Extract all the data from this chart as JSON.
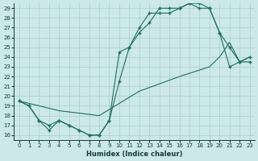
{
  "background_color": "#cce8e8",
  "grid_color": "#aacece",
  "line_color": "#1a7060",
  "xlabel": "Humidex (Indice chaleur)",
  "xlim": [
    -0.5,
    23.5
  ],
  "ylim": [
    15.5,
    29.5
  ],
  "yticks": [
    16,
    17,
    18,
    19,
    20,
    21,
    22,
    23,
    24,
    25,
    26,
    27,
    28,
    29
  ],
  "xticks": [
    0,
    1,
    2,
    3,
    4,
    5,
    6,
    7,
    8,
    9,
    10,
    11,
    12,
    13,
    14,
    15,
    16,
    17,
    18,
    19,
    20,
    21,
    22,
    23
  ],
  "line1_x": [
    0,
    1,
    2,
    3,
    4,
    5,
    6,
    7,
    8,
    9,
    10,
    11,
    12,
    13,
    14,
    15,
    16,
    17,
    18,
    19,
    20,
    21,
    22,
    23
  ],
  "line1_y": [
    19.5,
    19.0,
    17.5,
    17.0,
    17.5,
    17.0,
    16.5,
    16.0,
    16.0,
    17.5,
    21.5,
    25.0,
    26.5,
    27.5,
    29.0,
    29.0,
    29.0,
    29.5,
    29.0,
    29.0,
    26.5,
    25.0,
    23.5,
    24.0
  ],
  "line2_x": [
    0,
    1,
    2,
    3,
    4,
    5,
    6,
    7,
    8,
    9,
    10,
    11,
    12,
    13,
    14,
    15,
    16,
    17,
    18,
    19,
    20,
    21,
    22,
    23
  ],
  "line2_y": [
    19.5,
    19.0,
    17.5,
    16.5,
    17.5,
    17.0,
    16.5,
    16.0,
    16.0,
    17.5,
    24.5,
    25.0,
    27.0,
    28.5,
    28.5,
    28.5,
    29.0,
    29.5,
    29.5,
    29.0,
    26.5,
    23.0,
    23.5,
    23.5
  ],
  "line3_x": [
    0,
    4,
    8,
    12,
    16,
    19,
    20,
    21,
    22,
    23
  ],
  "line3_y": [
    19.5,
    18.5,
    18.0,
    20.5,
    22.0,
    23.0,
    24.0,
    25.5,
    23.5,
    24.0
  ]
}
